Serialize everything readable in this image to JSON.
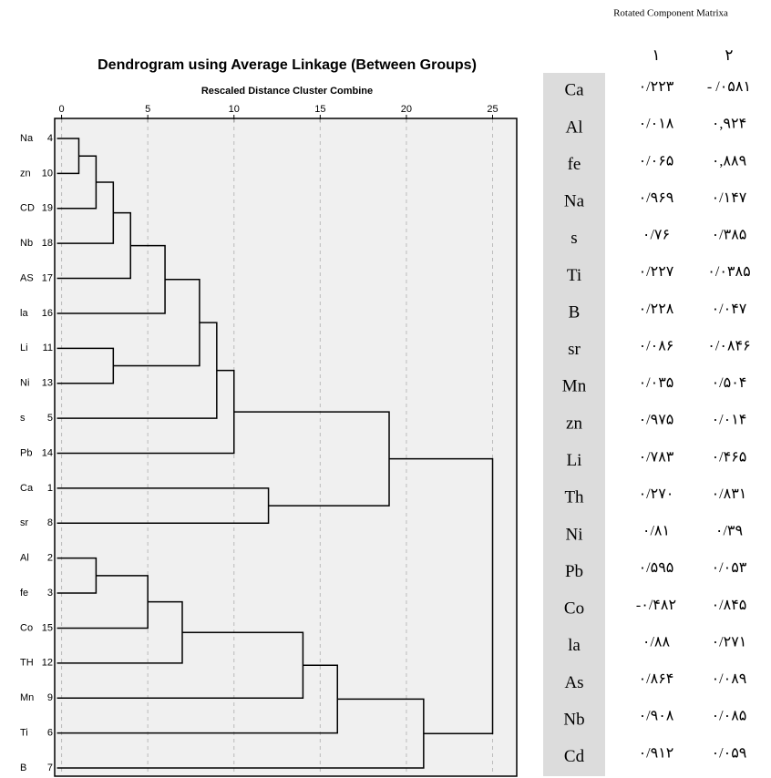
{
  "chart_data": {
    "type": "dendrogram",
    "title": "Dendrogram using Average Linkage (Between Groups)",
    "subtitle": "Rescaled Distance Cluster Combine",
    "leaves": [
      "Na",
      "zn",
      "CD",
      "Nb",
      "AS",
      "la",
      "Li",
      "Ni",
      "s",
      "Pb",
      "Ca",
      "sr",
      "Al",
      "fe",
      "Co",
      "TH",
      "Mn",
      "Ti",
      "B"
    ],
    "leaf_ids": [
      4,
      10,
      19,
      18,
      17,
      16,
      11,
      13,
      5,
      14,
      1,
      8,
      2,
      3,
      15,
      12,
      9,
      6,
      7
    ],
    "merges": [
      {
        "nodes": [
          0,
          1
        ],
        "height": 1
      },
      {
        "nodes": [
          19,
          2
        ],
        "height": 2
      },
      {
        "nodes": [
          20,
          3
        ],
        "height": 3
      },
      {
        "nodes": [
          21,
          4
        ],
        "height": 4
      },
      {
        "nodes": [
          22,
          5
        ],
        "height": 6
      },
      {
        "nodes": [
          6,
          7
        ],
        "height": 3
      },
      {
        "nodes": [
          23,
          24
        ],
        "height": 8
      },
      {
        "nodes": [
          25,
          8
        ],
        "height": 9
      },
      {
        "nodes": [
          26,
          9
        ],
        "height": 10
      },
      {
        "nodes": [
          10,
          11
        ],
        "height": 12
      },
      {
        "nodes": [
          27,
          28
        ],
        "height": 19
      },
      {
        "nodes": [
          12,
          13
        ],
        "height": 2
      },
      {
        "nodes": [
          30,
          14
        ],
        "height": 5
      },
      {
        "nodes": [
          31,
          15
        ],
        "height": 7
      },
      {
        "nodes": [
          32,
          16
        ],
        "height": 14
      },
      {
        "nodes": [
          33,
          17
        ],
        "height": 16
      },
      {
        "nodes": [
          34,
          18
        ],
        "height": 21
      },
      {
        "nodes": [
          29,
          35
        ],
        "height": 25
      }
    ],
    "xlim": [
      -0.4,
      26.4
    ],
    "xticks": [
      0,
      5,
      10,
      15,
      20,
      25
    ],
    "grid": true,
    "color": "#000000"
  },
  "table": {
    "title": "Rotated Component Matrixa",
    "columns": [
      "۱",
      "۲"
    ],
    "rows": [
      [
        "Ca",
        "۰/۲۲۳",
        "- /۰۵۸۱"
      ],
      [
        "Al",
        "۰/۰۱۸",
        "۰,۹۲۴"
      ],
      [
        "fe",
        "۰/۰۶۵",
        "۰,۸۸۹"
      ],
      [
        "Na",
        "۰/۹۶۹",
        "۰/۱۴۷"
      ],
      [
        "s",
        "۰/۷۶",
        "۰/۳۸۵"
      ],
      [
        "Ti",
        "۰/۲۲۷",
        "۰/۰۳۸۵"
      ],
      [
        "B",
        "۰/۲۲۸",
        "۰/۰۴۷"
      ],
      [
        "sr",
        "۰/۰۸۶",
        "۰/۰۸۴۶"
      ],
      [
        "Mn",
        "۰/۰۳۵",
        "۰/۵۰۴"
      ],
      [
        "zn",
        "۰/۹۷۵",
        "۰/۰۱۴"
      ],
      [
        "Li",
        "۰/۷۸۳",
        "۰/۴۶۵"
      ],
      [
        "Th",
        "۰/۲۷۰",
        "۰/۸۳۱"
      ],
      [
        "Ni",
        "۰/۸۱",
        "۰/۳۹"
      ],
      [
        "Pb",
        "۰/۵۹۵",
        "۰/۰۵۳"
      ],
      [
        "Co",
        "-۰/۴۸۲",
        "۰/۸۴۵"
      ],
      [
        "la",
        "۰/۸۸",
        "۰/۲۷۱"
      ],
      [
        "As",
        "۰/۸۶۴",
        "۰/۰۸۹"
      ],
      [
        "Nb",
        "۰/۹۰۸",
        "۰/۰۸۵"
      ],
      [
        "Cd",
        "۰/۹۱۲",
        "۰/۰۵۹"
      ]
    ]
  }
}
